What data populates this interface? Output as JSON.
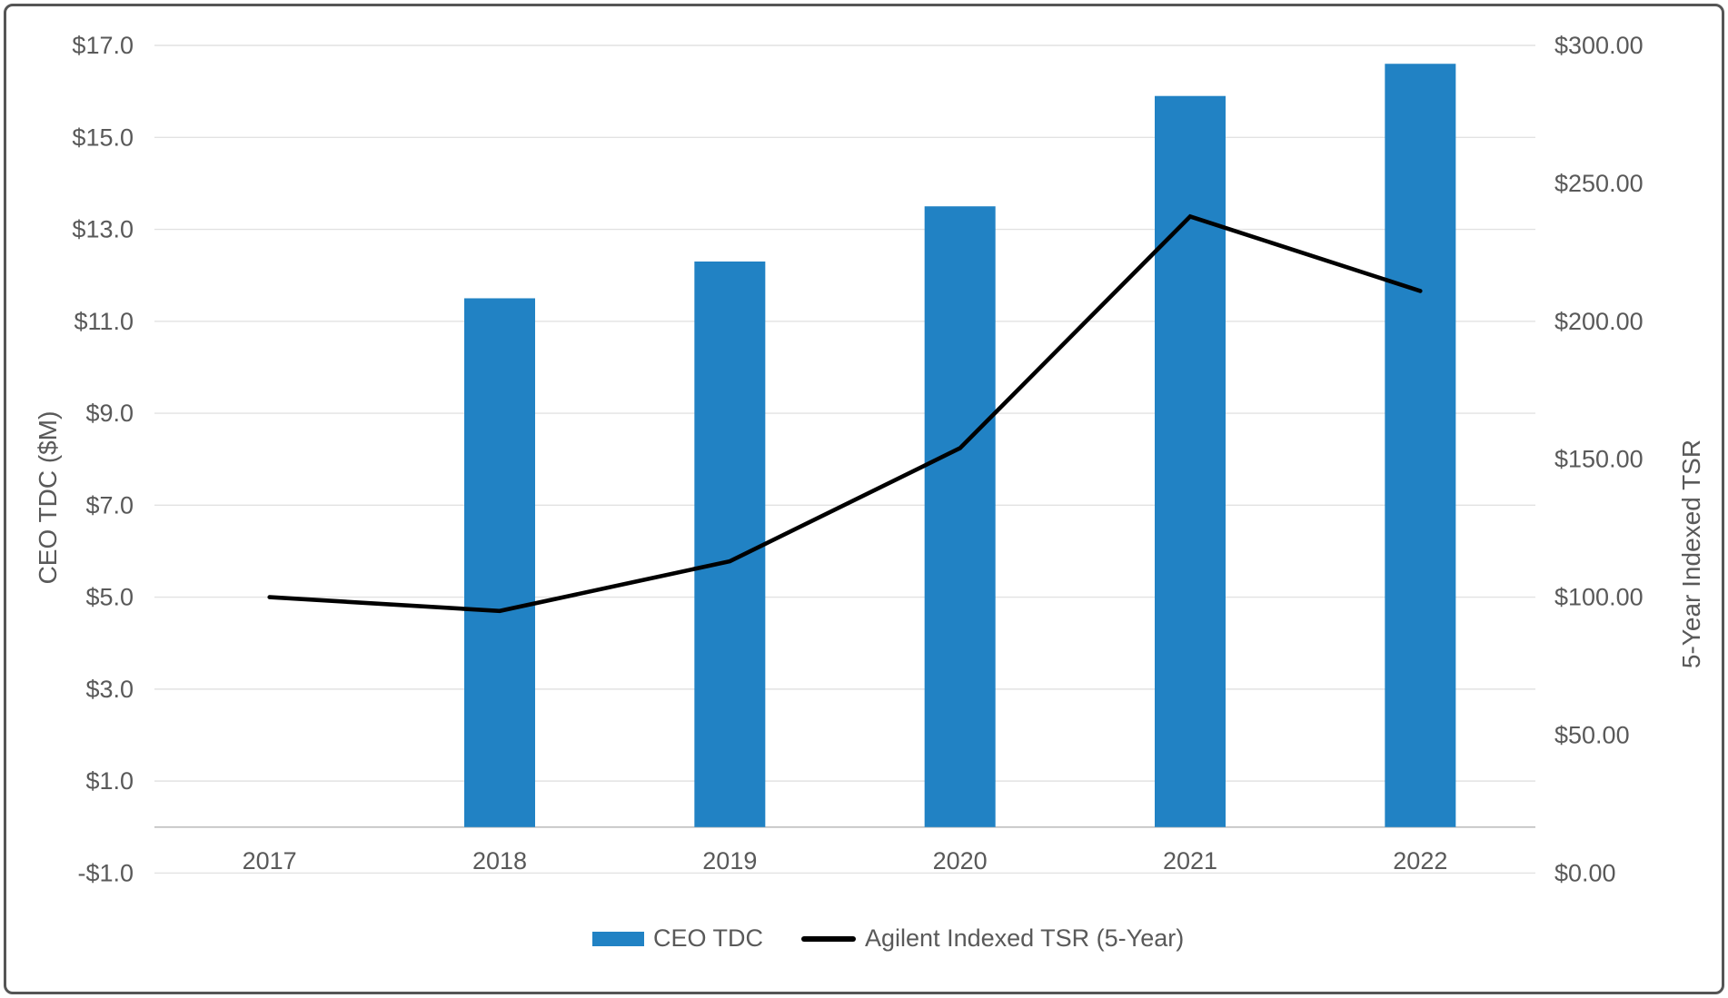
{
  "chart_data": {
    "type": "combo",
    "title": "",
    "categories": [
      "2017",
      "2018",
      "2019",
      "2020",
      "2021",
      "2022"
    ],
    "series": [
      {
        "name": "CEO TDC",
        "type": "bar",
        "axis": "left",
        "color": "#2182C4",
        "values": [
          null,
          11.5,
          12.3,
          13.5,
          15.9,
          16.6
        ]
      },
      {
        "name": "Agilent Indexed TSR (5-Year)",
        "type": "line",
        "axis": "right",
        "color": "#000000",
        "values": [
          100,
          95,
          113,
          154,
          238,
          211
        ]
      }
    ],
    "left_axis": {
      "title": "CEO TDC ($M)",
      "min": -1,
      "max": 17,
      "ticks": [
        {
          "value": 17,
          "label": "$17.0"
        },
        {
          "value": 15,
          "label": "$15.0"
        },
        {
          "value": 13,
          "label": "$13.0"
        },
        {
          "value": 11,
          "label": "$11.0"
        },
        {
          "value": 9,
          "label": "$9.0"
        },
        {
          "value": 7,
          "label": "$7.0"
        },
        {
          "value": 5,
          "label": "$5.0"
        },
        {
          "value": 3,
          "label": "$3.0"
        },
        {
          "value": 1,
          "label": "$1.0"
        },
        {
          "value": -1,
          "label": "-$1.0"
        }
      ]
    },
    "right_axis": {
      "title": "5-Year Indexed TSR",
      "min": 0,
      "max": 300,
      "ticks": [
        {
          "value": 300,
          "label": "$300.00"
        },
        {
          "value": 250,
          "label": "$250.00"
        },
        {
          "value": 200,
          "label": "$200.00"
        },
        {
          "value": 150,
          "label": "$150.00"
        },
        {
          "value": 100,
          "label": "$100.00"
        },
        {
          "value": 50,
          "label": "$50.00"
        },
        {
          "value": 0,
          "label": "$0.00"
        }
      ]
    },
    "legend": {
      "position": "bottom",
      "entries": [
        {
          "swatch": "bar-swatch",
          "series_index": 0
        },
        {
          "swatch": "line-swatch",
          "series_index": 1
        }
      ]
    },
    "grid": {
      "gridline_color": "#E2E2E2",
      "axis_line_color": "#BFBFBF"
    },
    "text_color": "#595959",
    "border_color": "#555555"
  }
}
